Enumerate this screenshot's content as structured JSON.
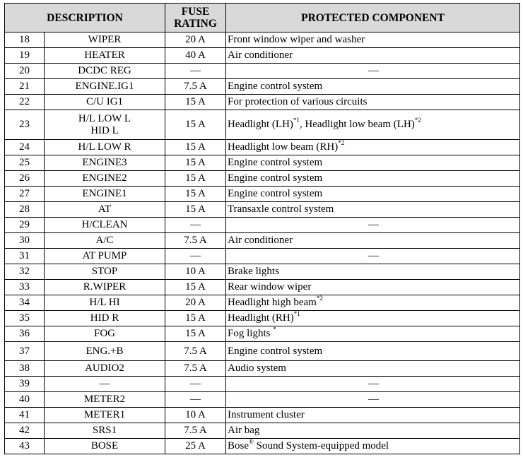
{
  "header": {
    "description": "DESCRIPTION",
    "rating_line1": "FUSE",
    "rating_line2": "RATING",
    "component": "PROTECTED COMPONENT"
  },
  "rows": [
    {
      "no": "18",
      "desc": [
        "WIPER"
      ],
      "rating": "20 A",
      "component": [
        {
          "t": "Front window wiper and washer"
        }
      ]
    },
    {
      "no": "19",
      "desc": [
        "HEATER"
      ],
      "rating": "40 A",
      "component": [
        {
          "t": "Air conditioner"
        }
      ]
    },
    {
      "no": "20",
      "desc": [
        "DCDC REG"
      ],
      "rating": "—",
      "component": [
        {
          "t": "—"
        }
      ]
    },
    {
      "no": "21",
      "desc": [
        "ENGINE.IG1"
      ],
      "rating": "7.5 A",
      "component": [
        {
          "t": "Engine control system"
        }
      ]
    },
    {
      "no": "22",
      "desc": [
        "C/U IG1"
      ],
      "rating": "15 A",
      "component": [
        {
          "t": "For protection of various circuits"
        }
      ]
    },
    {
      "no": "23",
      "desc": [
        "H/L LOW L",
        "HID L"
      ],
      "rating": "15 A",
      "component": [
        {
          "t": "Headlight (LH)",
          "s": "*1"
        },
        {
          "t": ", Headlight low beam (LH)",
          "s": "*2"
        }
      ]
    },
    {
      "no": "24",
      "desc": [
        "H/L LOW R"
      ],
      "rating": "15 A",
      "component": [
        {
          "t": "Headlight low beam (RH)",
          "s": "*2"
        }
      ]
    },
    {
      "no": "25",
      "desc": [
        "ENGINE3"
      ],
      "rating": "15 A",
      "component": [
        {
          "t": "Engine control system"
        }
      ]
    },
    {
      "no": "26",
      "desc": [
        "ENGINE2"
      ],
      "rating": "15 A",
      "component": [
        {
          "t": "Engine control system"
        }
      ]
    },
    {
      "no": "27",
      "desc": [
        "ENGINE1"
      ],
      "rating": "15 A",
      "component": [
        {
          "t": "Engine control system"
        }
      ]
    },
    {
      "no": "28",
      "desc": [
        "AT"
      ],
      "rating": "15 A",
      "component": [
        {
          "t": "Transaxle control system"
        }
      ]
    },
    {
      "no": "29",
      "desc": [
        "H/CLEAN"
      ],
      "rating": "—",
      "component": [
        {
          "t": "—"
        }
      ]
    },
    {
      "no": "30",
      "desc": [
        "A/C"
      ],
      "rating": "7.5 A",
      "component": [
        {
          "t": "Air conditioner"
        }
      ]
    },
    {
      "no": "31",
      "desc": [
        "AT PUMP"
      ],
      "rating": "—",
      "component": [
        {
          "t": "—"
        }
      ]
    },
    {
      "no": "32",
      "desc": [
        "STOP"
      ],
      "rating": "10 A",
      "component": [
        {
          "t": "Brake lights"
        }
      ]
    },
    {
      "no": "33",
      "desc": [
        "R.WIPER"
      ],
      "rating": "15 A",
      "component": [
        {
          "t": "Rear window wiper"
        }
      ]
    },
    {
      "no": "34",
      "desc": [
        "H/L HI"
      ],
      "rating": "20 A",
      "component": [
        {
          "t": "Headlight high beam",
          "s": "*2"
        }
      ]
    },
    {
      "no": "35",
      "desc": [
        "HID R"
      ],
      "rating": "15 A",
      "component": [
        {
          "t": "Headlight (RH)",
          "s": "*1"
        }
      ]
    },
    {
      "no": "36",
      "desc": [
        "FOG"
      ],
      "rating": "15 A",
      "component": [
        {
          "t": "Fog lights ",
          "s": "*"
        }
      ]
    },
    {
      "no": "37",
      "desc": [
        "ENG.+B"
      ],
      "rating": "7.5 A",
      "component": [
        {
          "t": "Engine control system"
        }
      ]
    },
    {
      "no": "38",
      "desc": [
        "AUDIO2"
      ],
      "rating": "7.5 A",
      "component": [
        {
          "t": "Audio system"
        }
      ]
    },
    {
      "no": "39",
      "desc": [
        "—"
      ],
      "rating": "—",
      "component": [
        {
          "t": "—"
        }
      ]
    },
    {
      "no": "40",
      "desc": [
        "METER2"
      ],
      "rating": "—",
      "component": [
        {
          "t": "—"
        }
      ]
    },
    {
      "no": "41",
      "desc": [
        "METER1"
      ],
      "rating": "10 A",
      "component": [
        {
          "t": "Instrument cluster"
        }
      ]
    },
    {
      "no": "42",
      "desc": [
        "SRS1"
      ],
      "rating": "7.5 A",
      "component": [
        {
          "t": "Air bag"
        }
      ]
    },
    {
      "no": "43",
      "desc": [
        "BOSE"
      ],
      "rating": "25 A",
      "component": [
        {
          "t": "Bose",
          "s": "®"
        },
        {
          "t": " Sound System-equipped model"
        }
      ]
    }
  ]
}
